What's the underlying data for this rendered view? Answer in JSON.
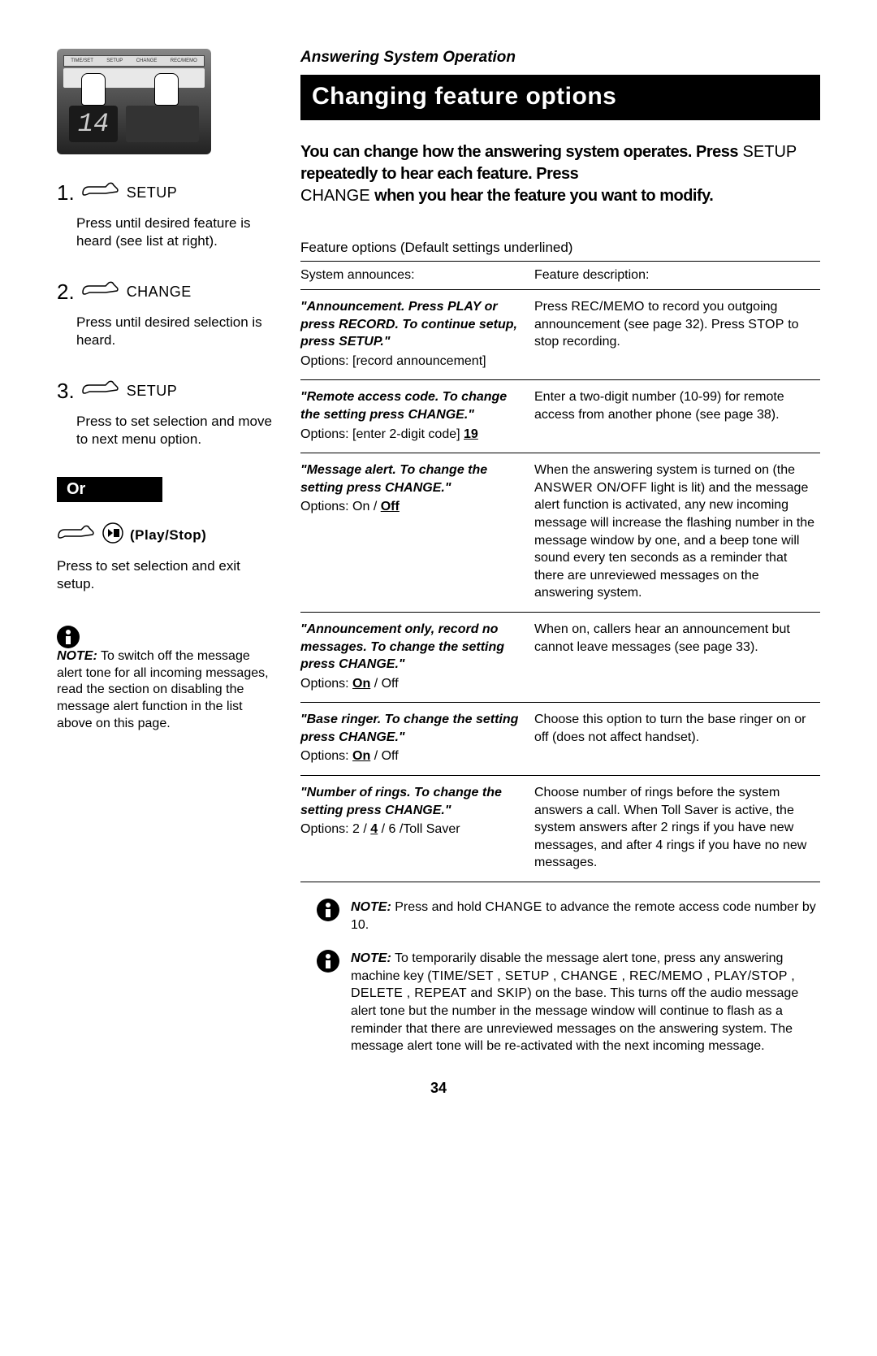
{
  "breadcrumb": "Answering System Operation",
  "title": "Changing feature options",
  "intro_parts": {
    "p1": "You can change how the answering system operates. Press",
    "setup": "SETUP",
    "p2": " repeatedly to hear each feature. Press ",
    "change": "CHANGE",
    "p3": " when you hear the feature you want to modify."
  },
  "device": {
    "display_value": "14",
    "strip_labels": [
      "TIME/SET",
      "SETUP",
      "CHANGE",
      "REC/MEMO"
    ]
  },
  "steps": [
    {
      "num": "1.",
      "label": "SETUP",
      "desc": "Press until desired feature is heard (see list at right)."
    },
    {
      "num": "2.",
      "label": "CHANGE",
      "desc": "Press until desired selection is heard."
    },
    {
      "num": "3.",
      "label": "SETUP",
      "desc": "Press to set selection and move to next menu option."
    }
  ],
  "or_label": "Or",
  "playstop": {
    "label": "(Play/Stop)",
    "desc": "Press to set selection and exit setup."
  },
  "left_note": {
    "bold": "NOTE:",
    "text": " To switch off the message alert tone for all incoming messages, read the section on disabling the message alert function in the list above on this page."
  },
  "table_title": "Feature options (Default settings underlined)",
  "table_head": {
    "c1": "System announces:",
    "c2": "Feature description:"
  },
  "rows": [
    {
      "announce": "\"Announcement. Press PLAY or press RECORD. To continue setup, press SETUP.\"",
      "opts_prefix": "Options: [record announcement]",
      "opts_default": "",
      "opts_suffix": "",
      "desc_pre": "Press ",
      "key1": "REC/MEMO",
      "desc_mid": " to record you outgoing announcement (see page 32). Press ",
      "key2": "STOP",
      "desc_post": " to stop recording."
    },
    {
      "announce": "\"Remote access code. To change the setting press CHANGE.\"",
      "opts_prefix": "Options: [enter 2-digit code] ",
      "opts_default": "19",
      "opts_suffix": "",
      "desc_pre": "Enter a two-digit number (10-99) for remote access from another phone (see page 38).",
      "key1": "",
      "desc_mid": "",
      "key2": "",
      "desc_post": ""
    },
    {
      "announce": "\"Message alert. To change the setting press CHANGE.\"",
      "opts_prefix": "Options: On / ",
      "opts_default": "Off",
      "opts_suffix": "",
      "desc_pre": "When the answering system is turned on (the ",
      "key1": "ANSWER ON/OFF",
      "desc_mid": " light is lit) and the message alert function is activated, any new incoming message will increase the flashing number in the message window by one, and a beep tone will sound every ten seconds as a reminder that there are unreviewed messages on the answering system.",
      "key2": "",
      "desc_post": ""
    },
    {
      "announce": "\"Announcement only, record no messages. To change the setting press CHANGE.\"",
      "opts_prefix": "Options: ",
      "opts_default": "On",
      "opts_suffix": " / Off",
      "desc_pre": "When on, callers hear an announcement but cannot leave messages (see page 33).",
      "key1": "",
      "desc_mid": "",
      "key2": "",
      "desc_post": ""
    },
    {
      "announce": "\"Base ringer. To change the setting press CHANGE.\"",
      "opts_prefix": "Options: ",
      "opts_default": "On",
      "opts_suffix": " / Off",
      "desc_pre": "Choose this option to turn the base ringer on or off (does not affect handset).",
      "key1": "",
      "desc_mid": "",
      "key2": "",
      "desc_post": ""
    },
    {
      "announce": "\"Number of rings. To change the setting press CHANGE.\"",
      "opts_prefix": "Options: 2 / ",
      "opts_default": "4",
      "opts_suffix": " / 6 /Toll Saver",
      "desc_pre": "Choose number of rings before the system answers a call. When Toll Saver is active, the system answers after 2 rings if you have new messages, and after 4 rings if you have no new messages.",
      "key1": "",
      "desc_mid": "",
      "key2": "",
      "desc_post": ""
    }
  ],
  "note1": {
    "bold": "NOTE:",
    "pre": " Press and hold ",
    "key": "CHANGE",
    "post": " to advance the remote access code number by 10."
  },
  "note2": {
    "bold": "NOTE:",
    "pre": " To temporarily disable the message alert tone, press any answering machine key (",
    "keys": "TIME/SET , SETUP , CHANGE , REC/MEMO , PLAY/STOP , DELETE , REPEAT and SKIP",
    "post": ") on the base. This turns off the audio message alert tone but the number in the message window will continue to flash as a reminder that there are unreviewed messages on the answering system. The message alert tone will be re-activated with the next incoming message."
  },
  "page_number": "34"
}
